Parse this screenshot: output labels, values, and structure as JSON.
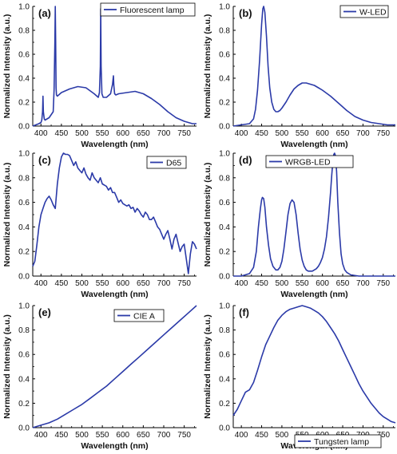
{
  "chart_data": [
    {
      "type": "line",
      "panel_label": "(a)",
      "legend": "Fluorescent lamp",
      "legend_position": "top-right",
      "xlabel": "Wavelength (nm)",
      "ylabel": "Normalized Intensity (a.u.)",
      "xlim": [
        380,
        780
      ],
      "ylim": [
        0,
        1.0
      ],
      "xticks": [
        "400",
        "450",
        "500",
        "550",
        "600",
        "650",
        "700",
        "750"
      ],
      "yticks": [
        "0.0",
        "0.2",
        "0.4",
        "0.6",
        "0.8",
        "1.0"
      ],
      "series": [
        {
          "name": "Fluorescent lamp",
          "x": [
            380,
            395,
            400,
            402,
            404,
            405,
            406,
            408,
            410,
            420,
            430,
            432,
            434,
            435,
            436,
            437,
            438,
            440,
            450,
            470,
            490,
            510,
            530,
            540,
            543,
            545,
            546,
            547,
            549,
            552,
            560,
            570,
            575,
            577,
            578,
            580,
            583,
            590,
            610,
            630,
            650,
            670,
            690,
            710,
            730,
            750,
            770,
            780
          ],
          "y": [
            0.0,
            0.02,
            0.03,
            0.05,
            0.12,
            0.25,
            0.12,
            0.06,
            0.05,
            0.07,
            0.12,
            0.3,
            0.7,
            1.0,
            0.7,
            0.32,
            0.26,
            0.25,
            0.28,
            0.31,
            0.33,
            0.32,
            0.27,
            0.24,
            0.28,
            0.5,
            0.98,
            0.5,
            0.27,
            0.24,
            0.24,
            0.27,
            0.35,
            0.42,
            0.34,
            0.27,
            0.26,
            0.27,
            0.28,
            0.29,
            0.27,
            0.23,
            0.18,
            0.12,
            0.07,
            0.04,
            0.02,
            0.02
          ]
        }
      ]
    },
    {
      "type": "line",
      "panel_label": "(b)",
      "legend": "W-LED",
      "legend_position": "top-right",
      "xlabel": "Wavelength (nm)",
      "ylabel": "Normalized Intensity (a.u.)",
      "xlim": [
        380,
        780
      ],
      "ylim": [
        0,
        1.0
      ],
      "xticks": [
        "400",
        "450",
        "500",
        "550",
        "600",
        "650",
        "700",
        "750"
      ],
      "yticks": [
        "0.0",
        "0.2",
        "0.4",
        "0.6",
        "0.8",
        "1.0"
      ],
      "series": [
        {
          "name": "W-LED",
          "x": [
            380,
            400,
            420,
            430,
            435,
            440,
            445,
            450,
            453,
            455,
            458,
            462,
            466,
            470,
            475,
            480,
            485,
            490,
            495,
            500,
            510,
            520,
            530,
            540,
            550,
            560,
            570,
            580,
            590,
            600,
            620,
            640,
            660,
            680,
            700,
            720,
            740,
            760,
            780
          ],
          "y": [
            0.0,
            0.01,
            0.02,
            0.06,
            0.14,
            0.3,
            0.55,
            0.85,
            0.98,
            1.0,
            0.95,
            0.75,
            0.5,
            0.32,
            0.2,
            0.14,
            0.12,
            0.12,
            0.13,
            0.15,
            0.2,
            0.26,
            0.31,
            0.34,
            0.36,
            0.36,
            0.35,
            0.34,
            0.32,
            0.3,
            0.25,
            0.19,
            0.13,
            0.08,
            0.05,
            0.03,
            0.02,
            0.01,
            0.01
          ]
        }
      ]
    },
    {
      "type": "line",
      "panel_label": "(c)",
      "legend": "D65",
      "legend_position": "top-right",
      "xlabel": "Wavelength (nm)",
      "ylabel": "Normalized Intensity (a.u.)",
      "xlim": [
        380,
        780
      ],
      "ylim": [
        0,
        1.0
      ],
      "xticks": [
        "400",
        "450",
        "500",
        "550",
        "600",
        "650",
        "700",
        "750"
      ],
      "yticks": [
        "0.0",
        "0.2",
        "0.4",
        "0.6",
        "0.8",
        "1.0"
      ],
      "series": [
        {
          "name": "D65",
          "x": [
            380,
            385,
            390,
            395,
            400,
            405,
            410,
            415,
            420,
            425,
            430,
            435,
            440,
            445,
            450,
            455,
            460,
            465,
            470,
            475,
            480,
            485,
            490,
            495,
            500,
            505,
            510,
            515,
            520,
            525,
            530,
            535,
            540,
            545,
            550,
            555,
            560,
            565,
            570,
            575,
            580,
            585,
            590,
            595,
            600,
            605,
            610,
            615,
            620,
            625,
            630,
            635,
            640,
            645,
            650,
            655,
            660,
            665,
            670,
            675,
            680,
            685,
            690,
            695,
            700,
            705,
            710,
            715,
            720,
            725,
            730,
            735,
            740,
            745,
            750,
            755,
            760,
            765,
            770,
            775,
            780
          ],
          "y": [
            0.08,
            0.12,
            0.25,
            0.4,
            0.5,
            0.55,
            0.6,
            0.63,
            0.65,
            0.62,
            0.58,
            0.55,
            0.75,
            0.88,
            0.97,
            1.0,
            0.99,
            0.99,
            0.98,
            0.94,
            0.9,
            0.93,
            0.88,
            0.86,
            0.84,
            0.88,
            0.83,
            0.8,
            0.78,
            0.84,
            0.8,
            0.78,
            0.76,
            0.8,
            0.75,
            0.74,
            0.73,
            0.7,
            0.72,
            0.68,
            0.68,
            0.64,
            0.6,
            0.62,
            0.59,
            0.58,
            0.57,
            0.58,
            0.55,
            0.56,
            0.52,
            0.55,
            0.53,
            0.5,
            0.48,
            0.52,
            0.5,
            0.46,
            0.46,
            0.48,
            0.44,
            0.4,
            0.38,
            0.34,
            0.3,
            0.34,
            0.37,
            0.3,
            0.22,
            0.3,
            0.34,
            0.27,
            0.2,
            0.24,
            0.26,
            0.14,
            0.02,
            0.18,
            0.28,
            0.26,
            0.22
          ]
        }
      ]
    },
    {
      "type": "line",
      "panel_label": "(d)",
      "legend": "WRGB-LED",
      "legend_position": "top-right",
      "xlabel": "Wavelength (nm)",
      "ylabel": "Normalized Intensity (a.u.)",
      "xlim": [
        380,
        780
      ],
      "ylim": [
        0,
        1.0
      ],
      "xticks": [
        "400",
        "450",
        "500",
        "550",
        "600",
        "650",
        "700",
        "750"
      ],
      "yticks": [
        "0.0",
        "0.2",
        "0.4",
        "0.6",
        "0.8",
        "1.0"
      ],
      "series": [
        {
          "name": "WRGB-LED",
          "x": [
            380,
            400,
            420,
            430,
            437,
            442,
            447,
            450,
            452,
            455,
            458,
            462,
            467,
            472,
            478,
            485,
            490,
            495,
            500,
            505,
            510,
            515,
            520,
            525,
            530,
            535,
            540,
            545,
            550,
            555,
            560,
            565,
            570,
            575,
            580,
            585,
            590,
            595,
            600,
            605,
            610,
            615,
            620,
            623,
            626,
            628,
            630,
            632,
            635,
            638,
            642,
            646,
            650,
            655,
            660,
            670,
            690,
            720,
            750,
            780
          ],
          "y": [
            0.0,
            0.0,
            0.02,
            0.07,
            0.2,
            0.4,
            0.55,
            0.62,
            0.64,
            0.63,
            0.56,
            0.4,
            0.25,
            0.14,
            0.08,
            0.05,
            0.05,
            0.07,
            0.12,
            0.22,
            0.36,
            0.5,
            0.59,
            0.62,
            0.6,
            0.5,
            0.35,
            0.22,
            0.13,
            0.08,
            0.05,
            0.04,
            0.04,
            0.04,
            0.05,
            0.06,
            0.08,
            0.11,
            0.15,
            0.22,
            0.32,
            0.48,
            0.68,
            0.82,
            0.94,
            0.99,
            1.0,
            0.98,
            0.85,
            0.6,
            0.35,
            0.18,
            0.1,
            0.05,
            0.03,
            0.01,
            0.0,
            0.0,
            0.0,
            0.0
          ]
        }
      ]
    },
    {
      "type": "line",
      "panel_label": "(e)",
      "legend": "CIE A",
      "legend_position": "top-right",
      "xlabel": "Wavelength (nm)",
      "ylabel": "Normalized Intensity (a.u.)",
      "xlim": [
        380,
        780
      ],
      "ylim": [
        0,
        1.0
      ],
      "xticks": [
        "400",
        "450",
        "500",
        "550",
        "600",
        "650",
        "700",
        "750"
      ],
      "yticks": [
        "0.0",
        "0.2",
        "0.4",
        "0.6",
        "0.8",
        "1.0"
      ],
      "series": [
        {
          "name": "CIE A",
          "x": [
            380,
            400,
            420,
            440,
            460,
            480,
            500,
            520,
            540,
            560,
            580,
            600,
            620,
            640,
            660,
            680,
            700,
            720,
            740,
            760,
            780
          ],
          "y": [
            0.0,
            0.02,
            0.04,
            0.07,
            0.11,
            0.15,
            0.19,
            0.24,
            0.29,
            0.34,
            0.4,
            0.46,
            0.52,
            0.58,
            0.64,
            0.7,
            0.76,
            0.82,
            0.88,
            0.94,
            1.0
          ]
        }
      ]
    },
    {
      "type": "line",
      "panel_label": "(f)",
      "legend": "Tungsten lamp",
      "legend_position": "bottom-right",
      "xlabel": "Wavelength (nm)",
      "ylabel": "Normalized Intensity (a.u.)",
      "xlim": [
        380,
        780
      ],
      "ylim": [
        0,
        1.0
      ],
      "xticks": [
        "400",
        "450",
        "500",
        "550",
        "600",
        "650",
        "700",
        "750"
      ],
      "yticks": [
        "0.0",
        "0.2",
        "0.4",
        "0.6",
        "0.8",
        "1.0"
      ],
      "series": [
        {
          "name": "Tungsten lamp",
          "x": [
            380,
            390,
            400,
            410,
            420,
            430,
            440,
            450,
            460,
            470,
            480,
            490,
            500,
            510,
            520,
            530,
            540,
            550,
            560,
            570,
            580,
            590,
            600,
            610,
            620,
            630,
            640,
            650,
            660,
            670,
            680,
            690,
            700,
            710,
            720,
            730,
            740,
            750,
            760,
            770,
            780
          ],
          "y": [
            0.1,
            0.15,
            0.22,
            0.29,
            0.31,
            0.37,
            0.47,
            0.58,
            0.68,
            0.75,
            0.82,
            0.88,
            0.92,
            0.95,
            0.97,
            0.98,
            0.99,
            1.0,
            0.99,
            0.98,
            0.96,
            0.94,
            0.91,
            0.87,
            0.82,
            0.77,
            0.71,
            0.64,
            0.57,
            0.5,
            0.43,
            0.36,
            0.3,
            0.25,
            0.2,
            0.16,
            0.12,
            0.09,
            0.07,
            0.05,
            0.04
          ]
        }
      ]
    }
  ],
  "colors": {
    "line": "#2b3aa8",
    "axis": "#000000"
  }
}
